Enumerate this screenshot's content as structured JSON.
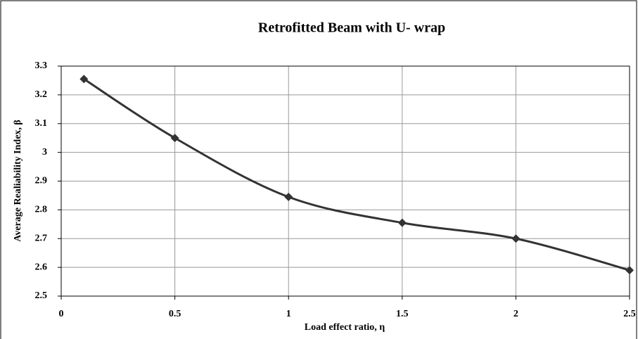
{
  "chart_data": {
    "type": "line",
    "title": "Retrofitted Beam with U- wrap",
    "xlabel": "Load effect ratio, η",
    "ylabel": "Average Realiability Index, β",
    "x": [
      0.1,
      0.5,
      1,
      1.5,
      2,
      2.5
    ],
    "series": [
      {
        "color": "#333333",
        "values": [
          3.255,
          3.05,
          2.845,
          2.755,
          2.7,
          2.59
        ]
      }
    ],
    "xlim": [
      0,
      2.5
    ],
    "xticks": [
      0,
      0.5,
      1,
      1.5,
      2,
      2.5
    ],
    "ylim": [
      2.5,
      3.3
    ],
    "yticks": [
      2.5,
      2.6,
      2.7,
      2.8,
      2.9,
      3,
      3.1,
      3.2,
      3.3
    ],
    "grid": true
  }
}
